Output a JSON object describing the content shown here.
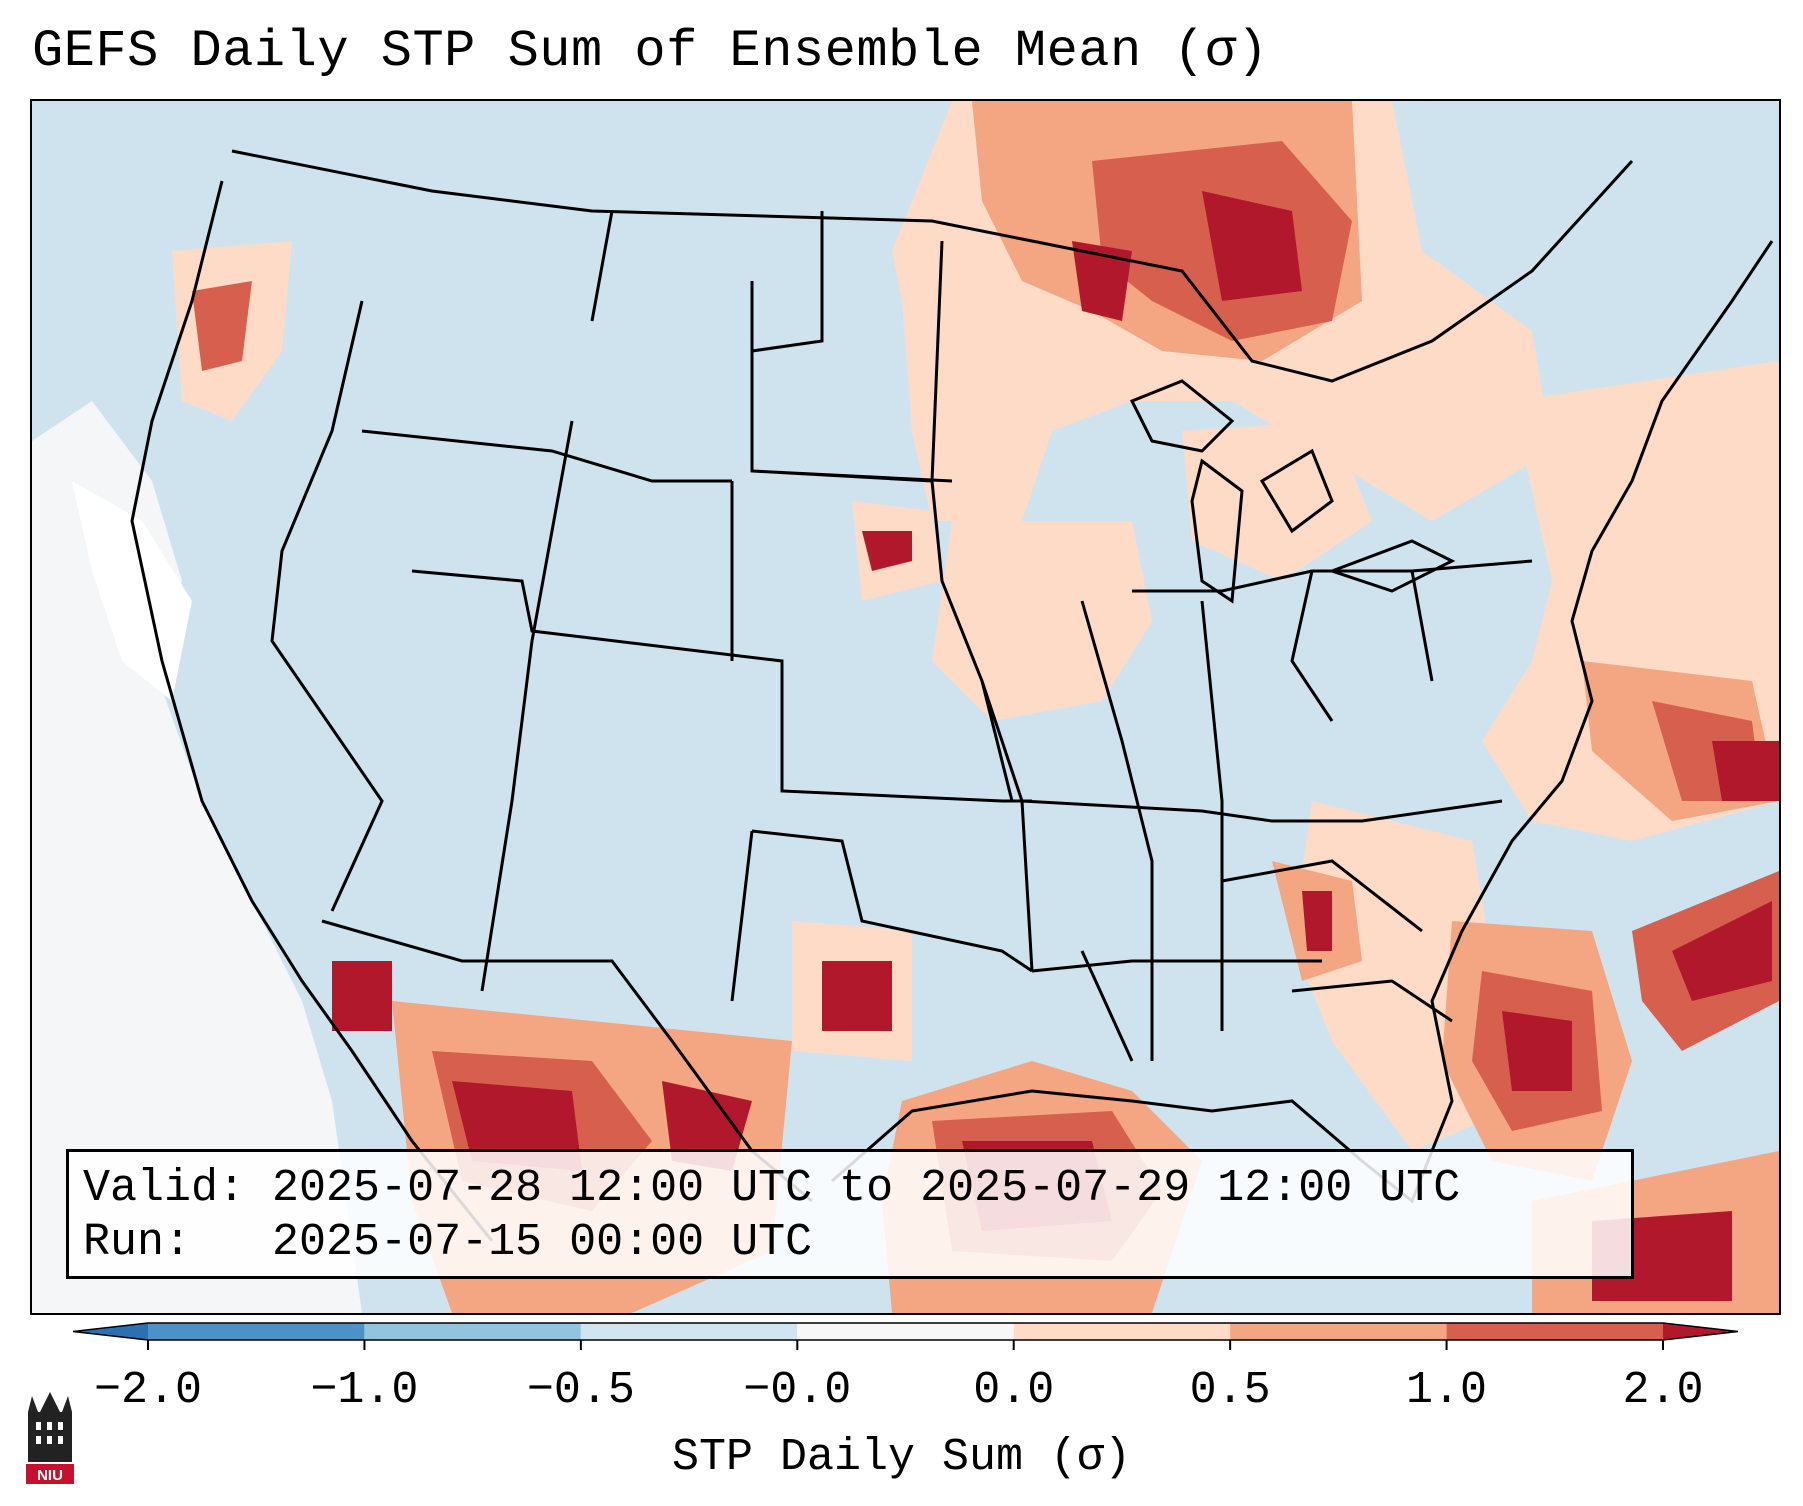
{
  "title": "GEFS Daily STP Sum of Ensemble Mean (σ)",
  "info": {
    "valid_label": "Valid:",
    "valid_value": "2025-07-28 12:00 UTC to 2025-07-29 12:00 UTC",
    "run_label": "Run:",
    "run_value": "2025-07-15 00:00 UTC"
  },
  "colorbar": {
    "label": "STP Daily Sum (σ)",
    "tick_labels": [
      "−2.0",
      "−1.0",
      "−0.5",
      "−0.0",
      "0.0",
      "0.5",
      "1.0",
      "2.0"
    ],
    "bins": [
      {
        "range": "< -2.0",
        "color": "#2c6fb3"
      },
      {
        "range": "-2.0 to -1.0",
        "color": "#4a92c8"
      },
      {
        "range": "-1.0 to -0.5",
        "color": "#93c4de"
      },
      {
        "range": "-0.5 to -0.0",
        "color": "#d1e5f0"
      },
      {
        "range": "-0.0 to 0.0",
        "color": "#f7f7f7"
      },
      {
        "range": "0.0 to 0.5",
        "color": "#fddbc7"
      },
      {
        "range": "0.5 to 1.0",
        "color": "#f4a582"
      },
      {
        "range": "1.0 to 2.0",
        "color": "#d6604d"
      },
      {
        "range": "> 2.0",
        "color": "#b2182b"
      }
    ]
  },
  "logo": {
    "text": "NIU"
  },
  "map": {
    "region": "CONUS"
  }
}
